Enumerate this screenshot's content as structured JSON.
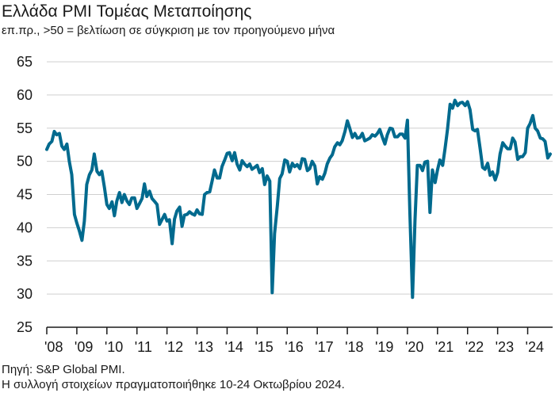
{
  "chart_data": {
    "type": "line",
    "title": "Ελλάδα PMI Τομέας Μεταποίησης",
    "subtitle": "επ.πρ., >50 = βελτίωση σε σύγκριση με τον προηγούμενο μήνα",
    "xlabel": "",
    "ylabel": "",
    "ylim": [
      25,
      65
    ],
    "yticks": [
      25,
      30,
      35,
      40,
      45,
      50,
      55,
      60,
      65
    ],
    "xlim": [
      2008.0,
      2024.83
    ],
    "xticks": [
      {
        "value": 2008,
        "label": "'08"
      },
      {
        "value": 2009,
        "label": "'09"
      },
      {
        "value": 2010,
        "label": "'10"
      },
      {
        "value": 2011,
        "label": "'11"
      },
      {
        "value": 2012,
        "label": "'12"
      },
      {
        "value": 2013,
        "label": "'13"
      },
      {
        "value": 2014,
        "label": "'14"
      },
      {
        "value": 2015,
        "label": "'15"
      },
      {
        "value": 2016,
        "label": "'16"
      },
      {
        "value": 2017,
        "label": "'17"
      },
      {
        "value": 2018,
        "label": "'18"
      },
      {
        "value": 2019,
        "label": "'19"
      },
      {
        "value": 2020,
        "label": "'20"
      },
      {
        "value": 2021,
        "label": "'21"
      },
      {
        "value": 2022,
        "label": "'22"
      },
      {
        "value": 2023,
        "label": "'23"
      },
      {
        "value": 2024,
        "label": "'24"
      }
    ],
    "grid": "horizontal",
    "line_color": "#006a8e",
    "series": [
      {
        "x": [
          2008.0,
          2008.08,
          2008.17,
          2008.25,
          2008.33,
          2008.42,
          2008.5,
          2008.58,
          2008.67,
          2008.75,
          2008.83,
          2008.92,
          2009.0,
          2009.08,
          2009.17,
          2009.25,
          2009.33,
          2009.42,
          2009.5,
          2009.58,
          2009.67,
          2009.75,
          2009.83,
          2009.92,
          2010.0,
          2010.08,
          2010.17,
          2010.25,
          2010.33,
          2010.42,
          2010.5,
          2010.58,
          2010.67,
          2010.75,
          2010.83,
          2010.92,
          2011.0,
          2011.08,
          2011.17,
          2011.25,
          2011.33,
          2011.42,
          2011.5,
          2011.58,
          2011.67,
          2011.75,
          2011.83,
          2011.92,
          2012.0,
          2012.08,
          2012.17,
          2012.25,
          2012.33,
          2012.42,
          2012.5,
          2012.58,
          2012.67,
          2012.75,
          2012.83,
          2012.92,
          2013.0,
          2013.08,
          2013.17,
          2013.25,
          2013.33,
          2013.42,
          2013.5,
          2013.58,
          2013.67,
          2013.75,
          2013.83,
          2013.92,
          2014.0,
          2014.08,
          2014.17,
          2014.25,
          2014.33,
          2014.42,
          2014.5,
          2014.58,
          2014.67,
          2014.75,
          2014.83,
          2014.92,
          2015.0,
          2015.08,
          2015.17,
          2015.25,
          2015.33,
          2015.42,
          2015.5,
          2015.58,
          2015.67,
          2015.75,
          2015.83,
          2015.92,
          2016.0,
          2016.08,
          2016.17,
          2016.25,
          2016.33,
          2016.42,
          2016.5,
          2016.58,
          2016.67,
          2016.75,
          2016.83,
          2016.92,
          2017.0,
          2017.08,
          2017.17,
          2017.25,
          2017.33,
          2017.42,
          2017.5,
          2017.58,
          2017.67,
          2017.75,
          2017.83,
          2017.92,
          2018.0,
          2018.08,
          2018.17,
          2018.25,
          2018.33,
          2018.42,
          2018.5,
          2018.58,
          2018.67,
          2018.75,
          2018.83,
          2018.92,
          2019.0,
          2019.08,
          2019.17,
          2019.25,
          2019.33,
          2019.42,
          2019.5,
          2019.58,
          2019.67,
          2019.75,
          2019.83,
          2019.92,
          2020.0,
          2020.08,
          2020.17,
          2020.25,
          2020.33,
          2020.42,
          2020.5,
          2020.58,
          2020.67,
          2020.75,
          2020.83,
          2020.92,
          2021.0,
          2021.08,
          2021.17,
          2021.25,
          2021.33,
          2021.42,
          2021.5,
          2021.58,
          2021.67,
          2021.75,
          2021.83,
          2021.92,
          2022.0,
          2022.08,
          2022.17,
          2022.25,
          2022.33,
          2022.42,
          2022.5,
          2022.58,
          2022.67,
          2022.75,
          2022.83,
          2022.92,
          2023.0,
          2023.08,
          2023.17,
          2023.25,
          2023.33,
          2023.42,
          2023.5,
          2023.58,
          2023.67,
          2023.75,
          2023.83,
          2023.92,
          2024.0,
          2024.08,
          2024.17,
          2024.25,
          2024.33,
          2024.42,
          2024.5,
          2024.58,
          2024.67,
          2024.75
        ],
        "y": [
          51.8,
          52.6,
          53.0,
          54.5,
          54.0,
          54.2,
          52.3,
          51.8,
          52.6,
          50.0,
          48.0,
          42.0,
          40.7,
          39.6,
          38.1,
          41.0,
          46.5,
          48.0,
          48.7,
          51.1,
          48.5,
          48.0,
          48.5,
          46.0,
          43.5,
          42.9,
          43.9,
          41.8,
          44.0,
          45.3,
          43.8,
          45.0,
          44.0,
          43.5,
          44.5,
          44.5,
          42.9,
          43.6,
          44.4,
          46.6,
          44.7,
          45.5,
          44.4,
          44.0,
          43.5,
          40.5,
          41.2,
          42.0,
          41.0,
          41.2,
          37.6,
          41.3,
          42.5,
          43.1,
          40.2,
          41.9,
          42.0,
          42.4,
          42.1,
          41.9,
          42.7,
          42.1,
          42.0,
          45.0,
          45.3,
          45.4,
          47.0,
          48.7,
          47.5,
          47.5,
          49.2,
          50.2,
          51.2,
          51.3,
          50.1,
          51.3,
          49.6,
          48.7,
          50.1,
          49.6,
          49.2,
          49.6,
          48.8,
          49.1,
          49.4,
          48.3,
          48.9,
          46.5,
          47.8,
          47.0,
          30.2,
          39.1,
          43.3,
          47.4,
          48.1,
          50.2,
          50.0,
          48.4,
          49.7,
          49.2,
          49.5,
          48.9,
          50.4,
          50.3,
          48.6,
          48.9,
          50.0,
          49.3,
          46.6,
          47.7,
          47.3,
          48.2,
          49.6,
          50.5,
          51.0,
          52.2,
          52.8,
          52.5,
          53.1,
          54.5,
          56.1,
          55.0,
          53.6,
          54.2,
          53.5,
          53.6,
          54.2,
          53.1,
          53.3,
          53.5,
          54.0,
          53.8,
          54.2,
          54.8,
          53.6,
          52.6,
          54.0,
          55.0,
          54.9,
          53.7,
          53.7,
          54.1,
          54.1,
          53.5,
          56.2,
          42.5,
          29.5,
          41.1,
          49.4,
          49.4,
          48.6,
          49.9,
          50.0,
          42.3,
          48.7,
          46.8,
          48.7,
          50.2,
          49.4,
          51.9,
          54.7,
          58.6,
          58.0,
          59.2,
          58.4,
          58.8,
          58.9,
          58.4,
          59.0,
          57.8,
          54.8,
          54.6,
          54.8,
          51.9,
          49.1,
          48.8,
          49.7,
          47.9,
          48.4,
          47.2,
          48.3,
          51.1,
          52.8,
          52.3,
          51.9,
          51.9,
          53.5,
          52.9,
          50.3,
          50.7,
          50.7,
          51.3,
          55.0,
          55.7,
          56.9,
          55.0,
          54.6,
          53.5,
          53.4,
          53.0,
          50.5,
          51.1
        ]
      }
    ],
    "source_note": "Πηγή: S&P Global PMI.",
    "collection_note": "Η συλλογή στοιχείων πραγματοποιήθηκε 10-24 Οκτωβρίου 2024."
  }
}
